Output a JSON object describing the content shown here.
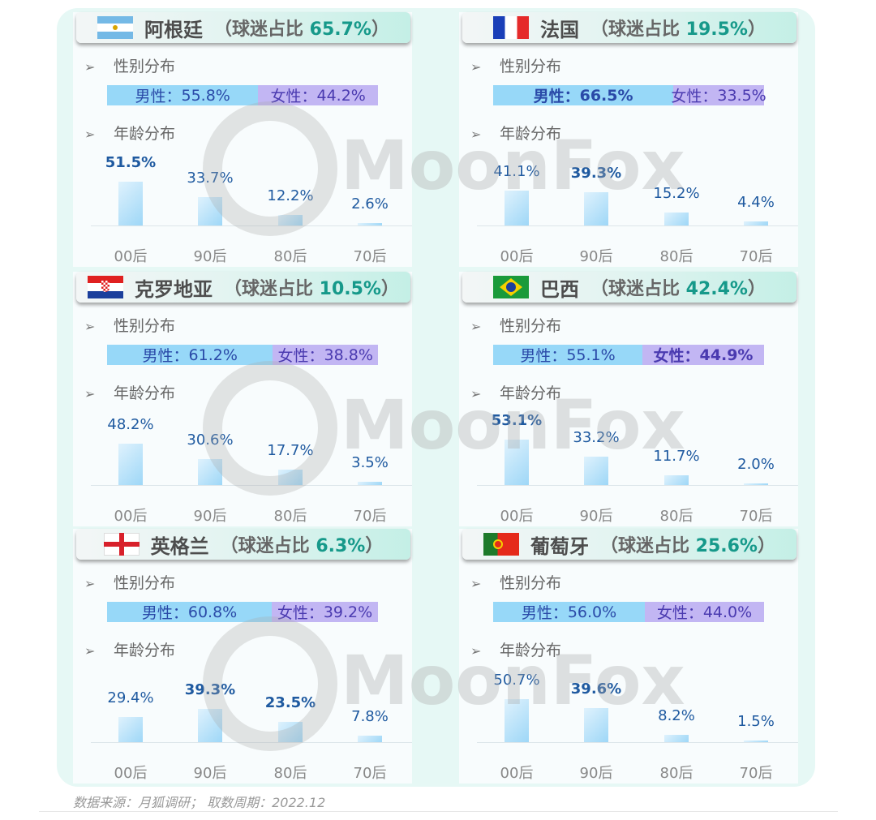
{
  "labels": {
    "gender": "性别分布",
    "age": "年龄分布",
    "fan_share_prefix": "（球迷占比 ",
    "fan_share_suffix": "）",
    "male": "男性：",
    "female": "女性："
  },
  "watermark": "MoonFox",
  "source": "数据来源：月狐调研； 取数周期：2022.12",
  "colors": {
    "male": "#97d8f8",
    "female": "#c2b6f3",
    "accent": "#16998a",
    "value": "#1f5aa0"
  },
  "chart_data": [
    {
      "type": "bar",
      "country": "阿根廷",
      "flag": "argentina-flag",
      "fan_share": "65.7%",
      "male": "55.8%",
      "female": "44.2%",
      "gender_bold": "none",
      "categories": [
        "00后",
        "90后",
        "80后",
        "70后"
      ],
      "values": [
        51.5,
        33.7,
        12.2,
        2.6
      ],
      "bold": [
        true,
        false,
        false,
        false
      ]
    },
    {
      "type": "bar",
      "country": "法国",
      "flag": "france-flag",
      "fan_share": "19.5%",
      "male": "66.5%",
      "female": "33.5%",
      "gender_bold": "male",
      "categories": [
        "00后",
        "90后",
        "80后",
        "70后"
      ],
      "values": [
        41.1,
        39.3,
        15.2,
        4.4
      ],
      "bold": [
        false,
        true,
        false,
        false
      ]
    },
    {
      "type": "bar",
      "country": "克罗地亚",
      "flag": "croatia-flag",
      "fan_share": "10.5%",
      "male": "61.2%",
      "female": "38.8%",
      "gender_bold": "none",
      "categories": [
        "00后",
        "90后",
        "80后",
        "70后"
      ],
      "values": [
        48.2,
        30.6,
        17.7,
        3.5
      ],
      "bold": [
        false,
        false,
        false,
        false
      ]
    },
    {
      "type": "bar",
      "country": "巴西",
      "flag": "brazil-flag",
      "fan_share": "42.4%",
      "male": "55.1%",
      "female": "44.9%",
      "gender_bold": "female",
      "categories": [
        "00后",
        "90后",
        "80后",
        "70后"
      ],
      "values": [
        53.1,
        33.2,
        11.7,
        2.0
      ],
      "bold": [
        true,
        false,
        false,
        false
      ]
    },
    {
      "type": "bar",
      "country": "英格兰",
      "flag": "england-flag",
      "fan_share": "6.3%",
      "male": "60.8%",
      "female": "39.2%",
      "gender_bold": "none",
      "categories": [
        "00后",
        "90后",
        "80后",
        "70后"
      ],
      "values": [
        29.4,
        39.3,
        23.5,
        7.8
      ],
      "bold": [
        false,
        true,
        true,
        false
      ]
    },
    {
      "type": "bar",
      "country": "葡萄牙",
      "flag": "portugal-flag",
      "fan_share": "25.6%",
      "male": "56.0%",
      "female": "44.0%",
      "gender_bold": "none",
      "categories": [
        "00后",
        "90后",
        "80后",
        "70后"
      ],
      "values": [
        50.7,
        39.6,
        8.2,
        1.5
      ],
      "bold": [
        false,
        true,
        false,
        false
      ]
    }
  ]
}
